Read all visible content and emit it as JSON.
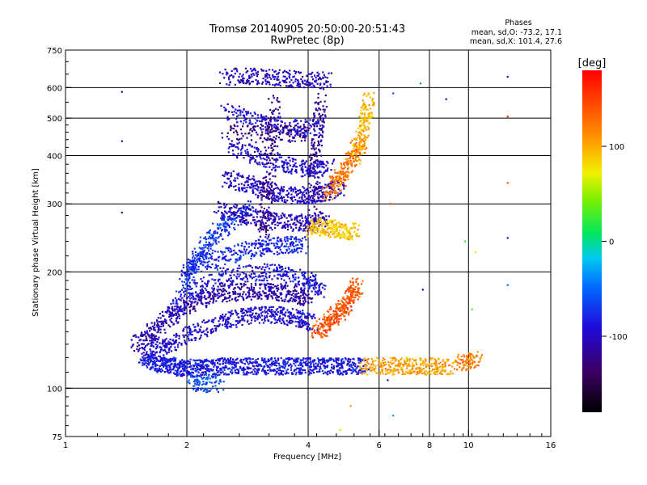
{
  "chart_data": {
    "type": "scatter",
    "title": "Tromsø 20140905 20:50:00-20:51:43",
    "subtitle": "RwPretec (8p)",
    "xlabel": "Frequency [MHz]",
    "ylabel": "Stationary phase Virtual Height [km]",
    "x_scale": "log",
    "y_scale": "log",
    "xlim": [
      1,
      16
    ],
    "ylim": [
      75,
      750
    ],
    "x_ticks": [
      "1",
      "2",
      "4",
      "6",
      "8",
      "10",
      "16"
    ],
    "x_tick_values": [
      1,
      2,
      4,
      6,
      8,
      10,
      16
    ],
    "x_grid_values": [
      2,
      4,
      6,
      8,
      10
    ],
    "y_ticks": [
      "75",
      "100",
      "200",
      "300",
      "400",
      "500",
      "600",
      "750"
    ],
    "y_tick_values": [
      75,
      100,
      200,
      300,
      400,
      500,
      600,
      750
    ],
    "y_grid_values": [
      100,
      200,
      300,
      400,
      500,
      600
    ],
    "grid": true,
    "legend": {
      "heading": "Phases",
      "lines": [
        "mean, sd,O: -73.2, 17.1",
        "mean, sd,X: 101.4, 27.6"
      ]
    },
    "colorbar": {
      "label": "[deg]",
      "range": [
        -180,
        180
      ],
      "ticks": [
        "100",
        "0",
        "-100"
      ],
      "tick_values": [
        100,
        0,
        -100
      ]
    },
    "traces": [
      {
        "f": [
          1.55,
          1.7,
          1.85,
          2.0,
          2.2,
          2.45,
          2.75,
          3.1,
          3.5,
          3.9,
          4.4,
          4.9,
          5.5
        ],
        "h": [
          120,
          116,
          114,
          113,
          113,
          114,
          114,
          114,
          114,
          114,
          114,
          114,
          114
        ],
        "phase": -85,
        "n": 8
      },
      {
        "f": [
          5.5,
          6.2,
          6.8,
          7.5,
          8.2,
          9.0
        ],
        "h": [
          114,
          114,
          114,
          114,
          114,
          114
        ],
        "phase": 105,
        "n": 6
      },
      {
        "f": [
          9.5,
          10.0,
          10.5
        ],
        "h": [
          116,
          117,
          119
        ],
        "phase": 120,
        "n": 4
      },
      {
        "f": [
          1.5,
          1.65,
          1.85,
          2.1,
          2.4,
          2.8,
          3.2,
          3.6,
          4.0
        ],
        "h": [
          130,
          140,
          155,
          168,
          175,
          178,
          178,
          176,
          170
        ],
        "phase": -110,
        "n": 7
      },
      {
        "f": [
          1.6,
          1.8,
          2.1,
          2.5,
          2.9,
          3.3,
          3.7,
          4.1
        ],
        "h": [
          123,
          130,
          140,
          150,
          155,
          155,
          152,
          148
        ],
        "phase": -95,
        "n": 7
      },
      {
        "f": [
          1.8,
          2.1,
          2.5,
          3.0,
          3.5,
          4.0,
          4.3
        ],
        "h": [
          160,
          180,
          195,
          200,
          198,
          190,
          180
        ],
        "phase": -90,
        "n": 6
      },
      {
        "f": [
          4.2,
          4.5,
          4.8,
          5.1,
          5.3
        ],
        "h": [
          140,
          148,
          158,
          170,
          185
        ],
        "phase": 140,
        "n": 7
      },
      {
        "f": [
          2.0,
          2.3,
          2.7,
          3.1,
          3.5,
          3.9
        ],
        "h": [
          205,
          215,
          225,
          232,
          235,
          235
        ],
        "phase": -80,
        "n": 6
      },
      {
        "f": [
          1.95,
          2.1,
          2.3,
          2.55,
          2.9
        ],
        "h": [
          185,
          215,
          245,
          270,
          290
        ],
        "phase": -70,
        "n": 7
      },
      {
        "f": [
          2.4,
          2.8,
          3.2,
          3.6,
          4.0,
          4.4
        ],
        "h": [
          290,
          280,
          272,
          268,
          268,
          272
        ],
        "phase": -105,
        "n": 6
      },
      {
        "f": [
          2.5,
          2.9,
          3.3,
          3.8,
          4.3,
          4.8
        ],
        "h": [
          350,
          335,
          320,
          315,
          318,
          330
        ],
        "phase": -100,
        "n": 7
      },
      {
        "f": [
          2.6,
          3.0,
          3.5,
          4.0,
          4.5
        ],
        "h": [
          420,
          400,
          380,
          370,
          372
        ],
        "phase": -95,
        "n": 6
      },
      {
        "f": [
          2.5,
          2.9,
          3.3,
          3.8,
          4.3
        ],
        "h": [
          520,
          500,
          480,
          470,
          475
        ],
        "phase": -90,
        "n": 5
      },
      {
        "f": [
          2.5,
          2.9,
          3.4,
          3.9,
          4.5
        ],
        "h": [
          640,
          640,
          635,
          630,
          625
        ],
        "phase": -100,
        "n": 6
      },
      {
        "f": [
          3.1,
          3.2,
          3.3
        ],
        "h": [
          250,
          350,
          550
        ],
        "phase": -125,
        "n": 8
      },
      {
        "f": [
          4.1,
          4.2,
          4.3
        ],
        "h": [
          300,
          420,
          560
        ],
        "phase": -115,
        "n": 7
      },
      {
        "f": [
          4.5,
          4.8,
          5.1,
          5.4
        ],
        "h": [
          320,
          350,
          390,
          430
        ],
        "phase": 125,
        "n": 7
      },
      {
        "f": [
          5.3,
          5.5,
          5.7
        ],
        "h": [
          400,
          480,
          560
        ],
        "phase": 95,
        "n": 7
      },
      {
        "f": [
          4.0,
          4.3,
          4.6,
          4.9,
          5.2
        ],
        "h": [
          258,
          262,
          258,
          255,
          255
        ],
        "phase": 90,
        "n": 5
      },
      {
        "f": [
          2.5,
          3.0,
          3.5,
          4.0
        ],
        "h": [
          460,
          455,
          455,
          460
        ],
        "phase": -125,
        "n": 4
      },
      {
        "f": [
          2.05,
          2.2,
          2.4
        ],
        "h": [
          104,
          103,
          102
        ],
        "phase": -60,
        "n": 4
      }
    ],
    "points": [
      {
        "f": 1.38,
        "h": 585,
        "phase": -110
      },
      {
        "f": 1.38,
        "h": 436,
        "phase": -110
      },
      {
        "f": 1.38,
        "h": 285,
        "phase": -110
      },
      {
        "f": 6.4,
        "h": 300,
        "phase": 150
      },
      {
        "f": 6.5,
        "h": 580,
        "phase": -60
      },
      {
        "f": 6.3,
        "h": 105,
        "phase": -110
      },
      {
        "f": 6.5,
        "h": 85,
        "phase": -30
      },
      {
        "f": 7.6,
        "h": 615,
        "phase": -40
      },
      {
        "f": 7.7,
        "h": 180,
        "phase": -120
      },
      {
        "f": 8.8,
        "h": 560,
        "phase": -115
      },
      {
        "f": 9.8,
        "h": 240,
        "phase": 20
      },
      {
        "f": 10.4,
        "h": 225,
        "phase": 65
      },
      {
        "f": 10.2,
        "h": 160,
        "phase": 30
      },
      {
        "f": 12.5,
        "h": 640,
        "phase": -115
      },
      {
        "f": 12.5,
        "h": 505,
        "phase": 165
      },
      {
        "f": 12.5,
        "h": 340,
        "phase": 135
      },
      {
        "f": 12.5,
        "h": 245,
        "phase": -100
      },
      {
        "f": 12.5,
        "h": 185,
        "phase": -50
      },
      {
        "f": 5.1,
        "h": 90,
        "phase": 110
      },
      {
        "f": 4.8,
        "h": 78,
        "phase": 60
      }
    ]
  }
}
